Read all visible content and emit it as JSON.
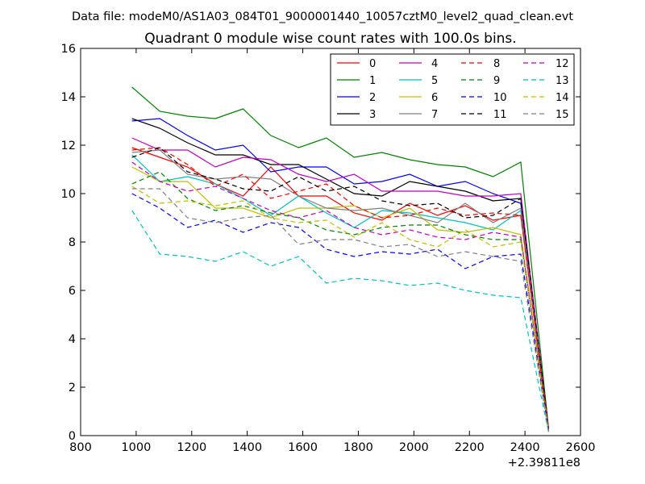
{
  "chart_data": {
    "type": "line",
    "suptitle": "Data file: modeM0/AS1A03_084T01_9000001440_10057cztM0_level2_quad_clean.evt",
    "title": "Quadrant 0 module wise count rates with 100.0s bins.",
    "xlabel": "",
    "ylabel": "",
    "x_offset_label": "+2.39811e8",
    "xlim": [
      800,
      2600
    ],
    "ylim": [
      0,
      16
    ],
    "xticks": [
      800,
      1000,
      1200,
      1400,
      1600,
      1800,
      2000,
      2200,
      2400,
      2600
    ],
    "yticks": [
      0,
      2,
      4,
      6,
      8,
      10,
      12,
      14,
      16
    ],
    "x": [
      985,
      1085,
      1185,
      1285,
      1385,
      1485,
      1585,
      1685,
      1785,
      1885,
      1985,
      2085,
      2185,
      2285,
      2385,
      2485
    ],
    "series": [
      {
        "name": "0",
        "color": "#ff0000",
        "dash": "solid",
        "values": [
          11.9,
          11.5,
          11.1,
          10.4,
          9.9,
          11.1,
          9.9,
          9.9,
          9.2,
          8.9,
          9.6,
          9.1,
          9.5,
          8.9,
          9.1,
          0.25
        ]
      },
      {
        "name": "1",
        "color": "#008000",
        "dash": "solid",
        "values": [
          14.4,
          13.4,
          13.2,
          13.1,
          13.5,
          12.4,
          11.9,
          12.3,
          11.5,
          11.7,
          11.4,
          11.2,
          11.1,
          10.7,
          11.3,
          0.3
        ]
      },
      {
        "name": "2",
        "color": "#0000ff",
        "dash": "solid",
        "values": [
          13.0,
          13.1,
          12.4,
          11.8,
          12.0,
          10.9,
          11.1,
          11.1,
          10.4,
          10.5,
          10.8,
          10.3,
          10.5,
          10.0,
          9.6,
          0.25
        ]
      },
      {
        "name": "3",
        "color": "#000000",
        "dash": "solid",
        "values": [
          13.1,
          12.7,
          12.1,
          11.6,
          11.6,
          11.2,
          11.2,
          10.6,
          10.0,
          9.9,
          10.5,
          10.3,
          10.1,
          9.7,
          9.8,
          0.3
        ]
      },
      {
        "name": "4",
        "color": "#bf00bf",
        "dash": "solid",
        "values": [
          12.3,
          11.8,
          11.8,
          11.1,
          11.5,
          11.4,
          10.8,
          10.5,
          10.8,
          10.1,
          10.1,
          10.1,
          9.9,
          9.9,
          10.0,
          0.25
        ]
      },
      {
        "name": "5",
        "color": "#00bfbf",
        "dash": "solid",
        "values": [
          11.6,
          10.5,
          10.7,
          10.4,
          9.8,
          9.1,
          9.9,
          9.2,
          8.6,
          9.3,
          9.2,
          9.0,
          8.8,
          8.5,
          9.3,
          0.2
        ]
      },
      {
        "name": "6",
        "color": "#bfbf00",
        "dash": "solid",
        "values": [
          11.1,
          10.5,
          10.5,
          9.4,
          9.4,
          9.0,
          9.4,
          9.4,
          9.5,
          9.0,
          9.4,
          8.5,
          8.4,
          8.6,
          8.3,
          0.2
        ]
      },
      {
        "name": "7",
        "color": "#808080",
        "dash": "solid",
        "values": [
          11.7,
          11.8,
          10.8,
          10.6,
          10.7,
          10.6,
          9.9,
          9.4,
          9.3,
          9.4,
          9.1,
          8.8,
          9.6,
          8.8,
          9.4,
          0.2
        ]
      },
      {
        "name": "8",
        "color": "#ff0000",
        "dash": "dashed",
        "values": [
          11.8,
          11.9,
          11.2,
          10.3,
          10.8,
          9.8,
          10.1,
          10.4,
          9.5,
          9.0,
          9.1,
          9.4,
          9.1,
          9.2,
          9.1,
          0.25
        ]
      },
      {
        "name": "9",
        "color": "#008000",
        "dash": "dashed",
        "values": [
          10.4,
          10.9,
          9.8,
          9.3,
          9.5,
          9.2,
          9.0,
          8.5,
          8.3,
          8.6,
          8.7,
          8.7,
          8.3,
          8.1,
          8.1,
          0.2
        ]
      },
      {
        "name": "10",
        "color": "#0000ff",
        "dash": "dashed",
        "values": [
          10.0,
          9.4,
          8.6,
          8.9,
          8.4,
          8.8,
          8.6,
          7.7,
          7.4,
          7.6,
          7.5,
          7.7,
          6.9,
          7.4,
          7.5,
          0.2
        ]
      },
      {
        "name": "11",
        "color": "#000000",
        "dash": "dashed",
        "values": [
          11.5,
          11.9,
          10.9,
          10.6,
          10.2,
          10.1,
          10.7,
          10.1,
          10.3,
          9.7,
          9.5,
          9.6,
          9.0,
          9.1,
          9.8,
          0.25
        ]
      },
      {
        "name": "12",
        "color": "#bf00bf",
        "dash": "dashed",
        "values": [
          11.3,
          10.5,
          10.1,
          10.3,
          9.8,
          9.3,
          9.0,
          9.3,
          8.6,
          8.3,
          8.5,
          8.2,
          8.1,
          8.4,
          8.2,
          0.2
        ]
      },
      {
        "name": "13",
        "color": "#00bfbf",
        "dash": "dashed",
        "values": [
          9.3,
          7.5,
          7.4,
          7.2,
          7.6,
          7.0,
          7.4,
          6.3,
          6.5,
          6.4,
          6.2,
          6.3,
          6.0,
          5.8,
          5.7,
          0.15
        ]
      },
      {
        "name": "14",
        "color": "#bfbf00",
        "dash": "dashed",
        "values": [
          10.3,
          9.6,
          9.7,
          9.5,
          9.7,
          9.0,
          8.8,
          8.9,
          8.2,
          8.8,
          8.1,
          7.8,
          8.5,
          7.8,
          8.0,
          0.2
        ]
      },
      {
        "name": "15",
        "color": "#808080",
        "dash": "dashed",
        "values": [
          10.2,
          10.2,
          9.0,
          8.8,
          9.0,
          9.1,
          7.9,
          8.1,
          8.1,
          7.8,
          7.9,
          7.4,
          7.6,
          7.4,
          7.2,
          0.15
        ]
      }
    ],
    "legend": {
      "location": "upper-right",
      "columns": 4
    }
  }
}
